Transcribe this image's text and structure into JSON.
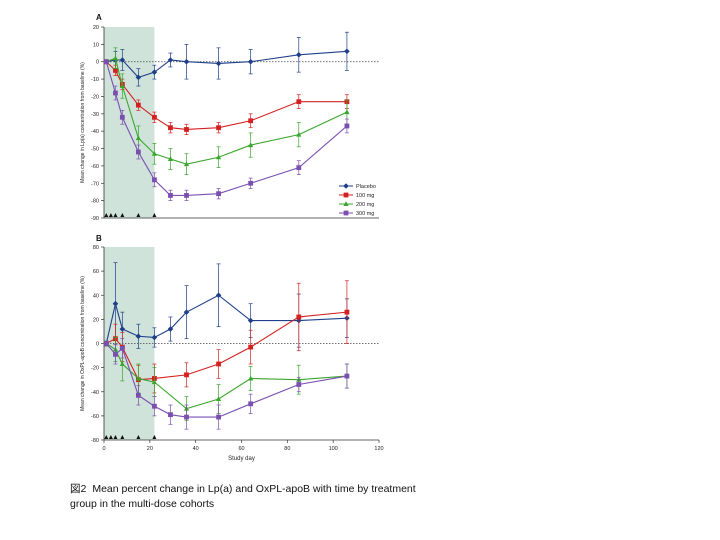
{
  "chart_data": [
    {
      "type": "line",
      "panel_label": "A",
      "ylabel": "Mean change in Lp(a) concentration from baseline (%)",
      "xlabel": "",
      "xlim": [
        0,
        120
      ],
      "ylim": [
        -90,
        20
      ],
      "yticks": [
        20,
        10,
        0,
        -10,
        -20,
        -30,
        -40,
        -50,
        -60,
        -70,
        -80,
        -90
      ],
      "xticks": [],
      "dosing_days": [
        1,
        3,
        5,
        8,
        15,
        22
      ],
      "shaded_region": [
        0,
        22
      ],
      "reference_line": 0,
      "legend": {
        "placement": "right",
        "entries": [
          "Placebo",
          "100 mg",
          "200 mg",
          "300 mg"
        ]
      },
      "series": [
        {
          "name": "Placebo",
          "color": "#1f3f8a",
          "marker": "diamond",
          "x": [
            1,
            5,
            8,
            15,
            22,
            29,
            36,
            50,
            64,
            85,
            106
          ],
          "y": [
            0,
            1,
            1,
            -9,
            -6,
            1,
            0,
            -1,
            0,
            4,
            6
          ],
          "err": [
            1,
            5,
            6,
            5,
            4,
            4,
            10,
            9,
            7,
            10,
            11
          ]
        },
        {
          "name": "100 mg",
          "color": "#d42020",
          "marker": "square",
          "x": [
            1,
            5,
            8,
            15,
            22,
            29,
            36,
            50,
            64,
            85,
            106
          ],
          "y": [
            0,
            -5,
            -13,
            -25,
            -32,
            -38,
            -39,
            -38,
            -34,
            -23,
            -23
          ],
          "err": [
            1,
            3,
            3,
            3,
            3,
            3,
            3,
            3,
            4,
            4,
            4
          ]
        },
        {
          "name": "200 mg",
          "color": "#3aa62c",
          "marker": "triangle",
          "x": [
            1,
            5,
            8,
            15,
            22,
            29,
            36,
            50,
            64,
            85,
            106
          ],
          "y": [
            0,
            2,
            -14,
            -44,
            -53,
            -56,
            -59,
            -55,
            -48,
            -42,
            -29
          ],
          "err": [
            1,
            6,
            7,
            7,
            6,
            6,
            6,
            6,
            7,
            7,
            7
          ]
        },
        {
          "name": "300 mg",
          "color": "#7a4fb0",
          "marker": "square",
          "x": [
            1,
            5,
            8,
            15,
            22,
            29,
            36,
            50,
            64,
            85,
            106
          ],
          "y": [
            0,
            -18,
            -32,
            -52,
            -68,
            -77,
            -77,
            -76,
            -70,
            -61,
            -37
          ],
          "err": [
            1,
            4,
            4,
            4,
            4,
            3,
            3,
            3,
            3,
            4,
            4
          ]
        }
      ]
    },
    {
      "type": "line",
      "panel_label": "B",
      "ylabel": "Mean change in OxPL-apoB concentration from baseline (%)",
      "xlabel": "Study day",
      "xlim": [
        0,
        120
      ],
      "ylim": [
        -80,
        80
      ],
      "yticks": [
        80,
        60,
        40,
        20,
        0,
        -20,
        -40,
        -60,
        -80
      ],
      "xticks": [
        0,
        20,
        40,
        60,
        80,
        100,
        120
      ],
      "dosing_days": [
        1,
        3,
        5,
        8,
        15,
        22
      ],
      "shaded_region": [
        0,
        22
      ],
      "reference_line": 0,
      "series": [
        {
          "name": "Placebo",
          "color": "#1f3f8a",
          "marker": "diamond",
          "x": [
            1,
            5,
            8,
            15,
            22,
            29,
            36,
            50,
            64,
            85,
            106
          ],
          "y": [
            0,
            33,
            12,
            6,
            5,
            12,
            26,
            40,
            19,
            19,
            21
          ],
          "err": [
            2,
            34,
            14,
            10,
            8,
            10,
            22,
            26,
            14,
            22,
            16
          ]
        },
        {
          "name": "100 mg",
          "color": "#d42020",
          "marker": "square",
          "x": [
            1,
            5,
            8,
            15,
            22,
            36,
            50,
            64,
            85,
            106
          ],
          "y": [
            0,
            4,
            -3,
            -30,
            -29,
            -26,
            -17,
            -3,
            22,
            26
          ],
          "err": [
            2,
            12,
            12,
            12,
            12,
            10,
            12,
            14,
            28,
            26
          ]
        },
        {
          "name": "200 mg",
          "color": "#3aa62c",
          "marker": "triangle",
          "x": [
            1,
            5,
            8,
            15,
            22,
            36,
            50,
            64,
            85,
            106
          ],
          "y": [
            0,
            -5,
            -17,
            -29,
            -32,
            -54,
            -46,
            -29,
            -30,
            -27
          ],
          "err": [
            2,
            10,
            14,
            12,
            12,
            10,
            12,
            10,
            12,
            10
          ]
        },
        {
          "name": "300 mg",
          "color": "#7a4fb0",
          "marker": "square",
          "x": [
            1,
            5,
            8,
            15,
            22,
            29,
            36,
            50,
            64,
            85,
            106
          ],
          "y": [
            0,
            -9,
            -4,
            -43,
            -52,
            -59,
            -61,
            -61,
            -50,
            -34,
            -27
          ],
          "err": [
            2,
            8,
            8,
            8,
            8,
            8,
            10,
            10,
            8,
            6,
            10
          ]
        }
      ]
    }
  ],
  "caption": {
    "prefix": "図2",
    "text": "Mean percent change in Lp(a) and OxPL-apoB with time by treatment group in the multi-dose cohorts"
  }
}
